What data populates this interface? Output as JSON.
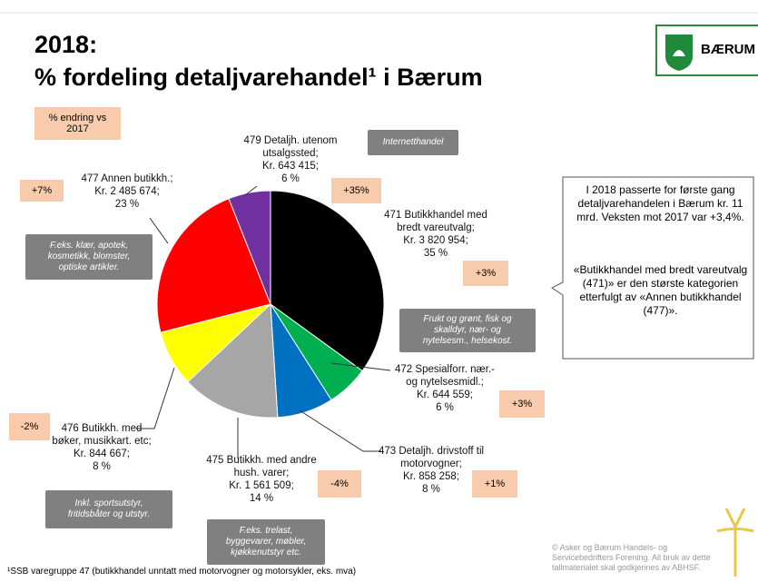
{
  "chart_data": {
    "type": "pie",
    "title": "2018:",
    "subtitle": "% fordeling detaljvarehandel¹ i Bærum",
    "logo_text": "BÆRUM",
    "categories": [
      "471 Butikkhandel med\nbredt vareutvalg;",
      "472 Spesialforr. nær.-\nog nytelsesmidl.;",
      "473 Detaljh. drivstoff til\nmotorvogner;",
      "475 Butikkh. med andre\nhush. varer;",
      "476 Butikkh. med\nbøker, musikkart. etc;",
      "477 Annen butikkh.;",
      "479 Detaljh. utenom\nutsalgssted;"
    ],
    "amounts": [
      "Kr. 3 820 954;",
      "Kr. 644 559;",
      "Kr. 858 258;",
      "Kr. 1 561 509;",
      "Kr. 844 667;",
      "Kr. 2 485 674;",
      "Kr. 643 415;"
    ],
    "values": [
      35,
      6,
      8,
      14,
      8,
      23,
      6
    ],
    "value_labels": [
      "35 %",
      "6 %",
      "8 %",
      "14 %",
      "8 %",
      "23 %",
      "6 %"
    ],
    "colors": [
      "#000000",
      "#00b050",
      "#0070c0",
      "#a6a6a6",
      "#ffff00",
      "#ff0000",
      "#7030a0"
    ],
    "changes_header": "% endring vs\n2017",
    "changes": [
      "+3%",
      "+3%",
      "+1%",
      "-4%",
      "-2%",
      "+7%",
      "+35%"
    ],
    "notes": [
      "Frukt og grønt, fisk og\nskalldyr, nær- og\nnytelsesm., helsekost.",
      "Inkl. sportsutstyr,\nfritidsbåter og utstyr.",
      "F.eks. trelast,\nbyggevarer, møbler,\nkjøkkenutstyr etc.",
      "F.eks. klær, apotek,\nkosmetikk, blomster,\noptiske artikler.",
      "Internetthandel"
    ],
    "info_box": [
      "I 2018 passerte for første gang detaljvarehandelen i Bærum kr. 11 mrd. Veksten mot 2017 var +3,4%.",
      "«Butikkhandel med bredt vareutvalg (471)» er den største kategorien etterfulgt av «Annen butikkhandel (477)»."
    ],
    "footnote": "¹SSB varegruppe 47 (butikkhandel unntatt med motorvogner og motorsykler, eks. mva)",
    "copyright": "© Asker og Bærum Handels- og\nServicebedrifters Forening. All bruk av dette\ntallmaterialet skal godkjennes av ABHSF."
  }
}
